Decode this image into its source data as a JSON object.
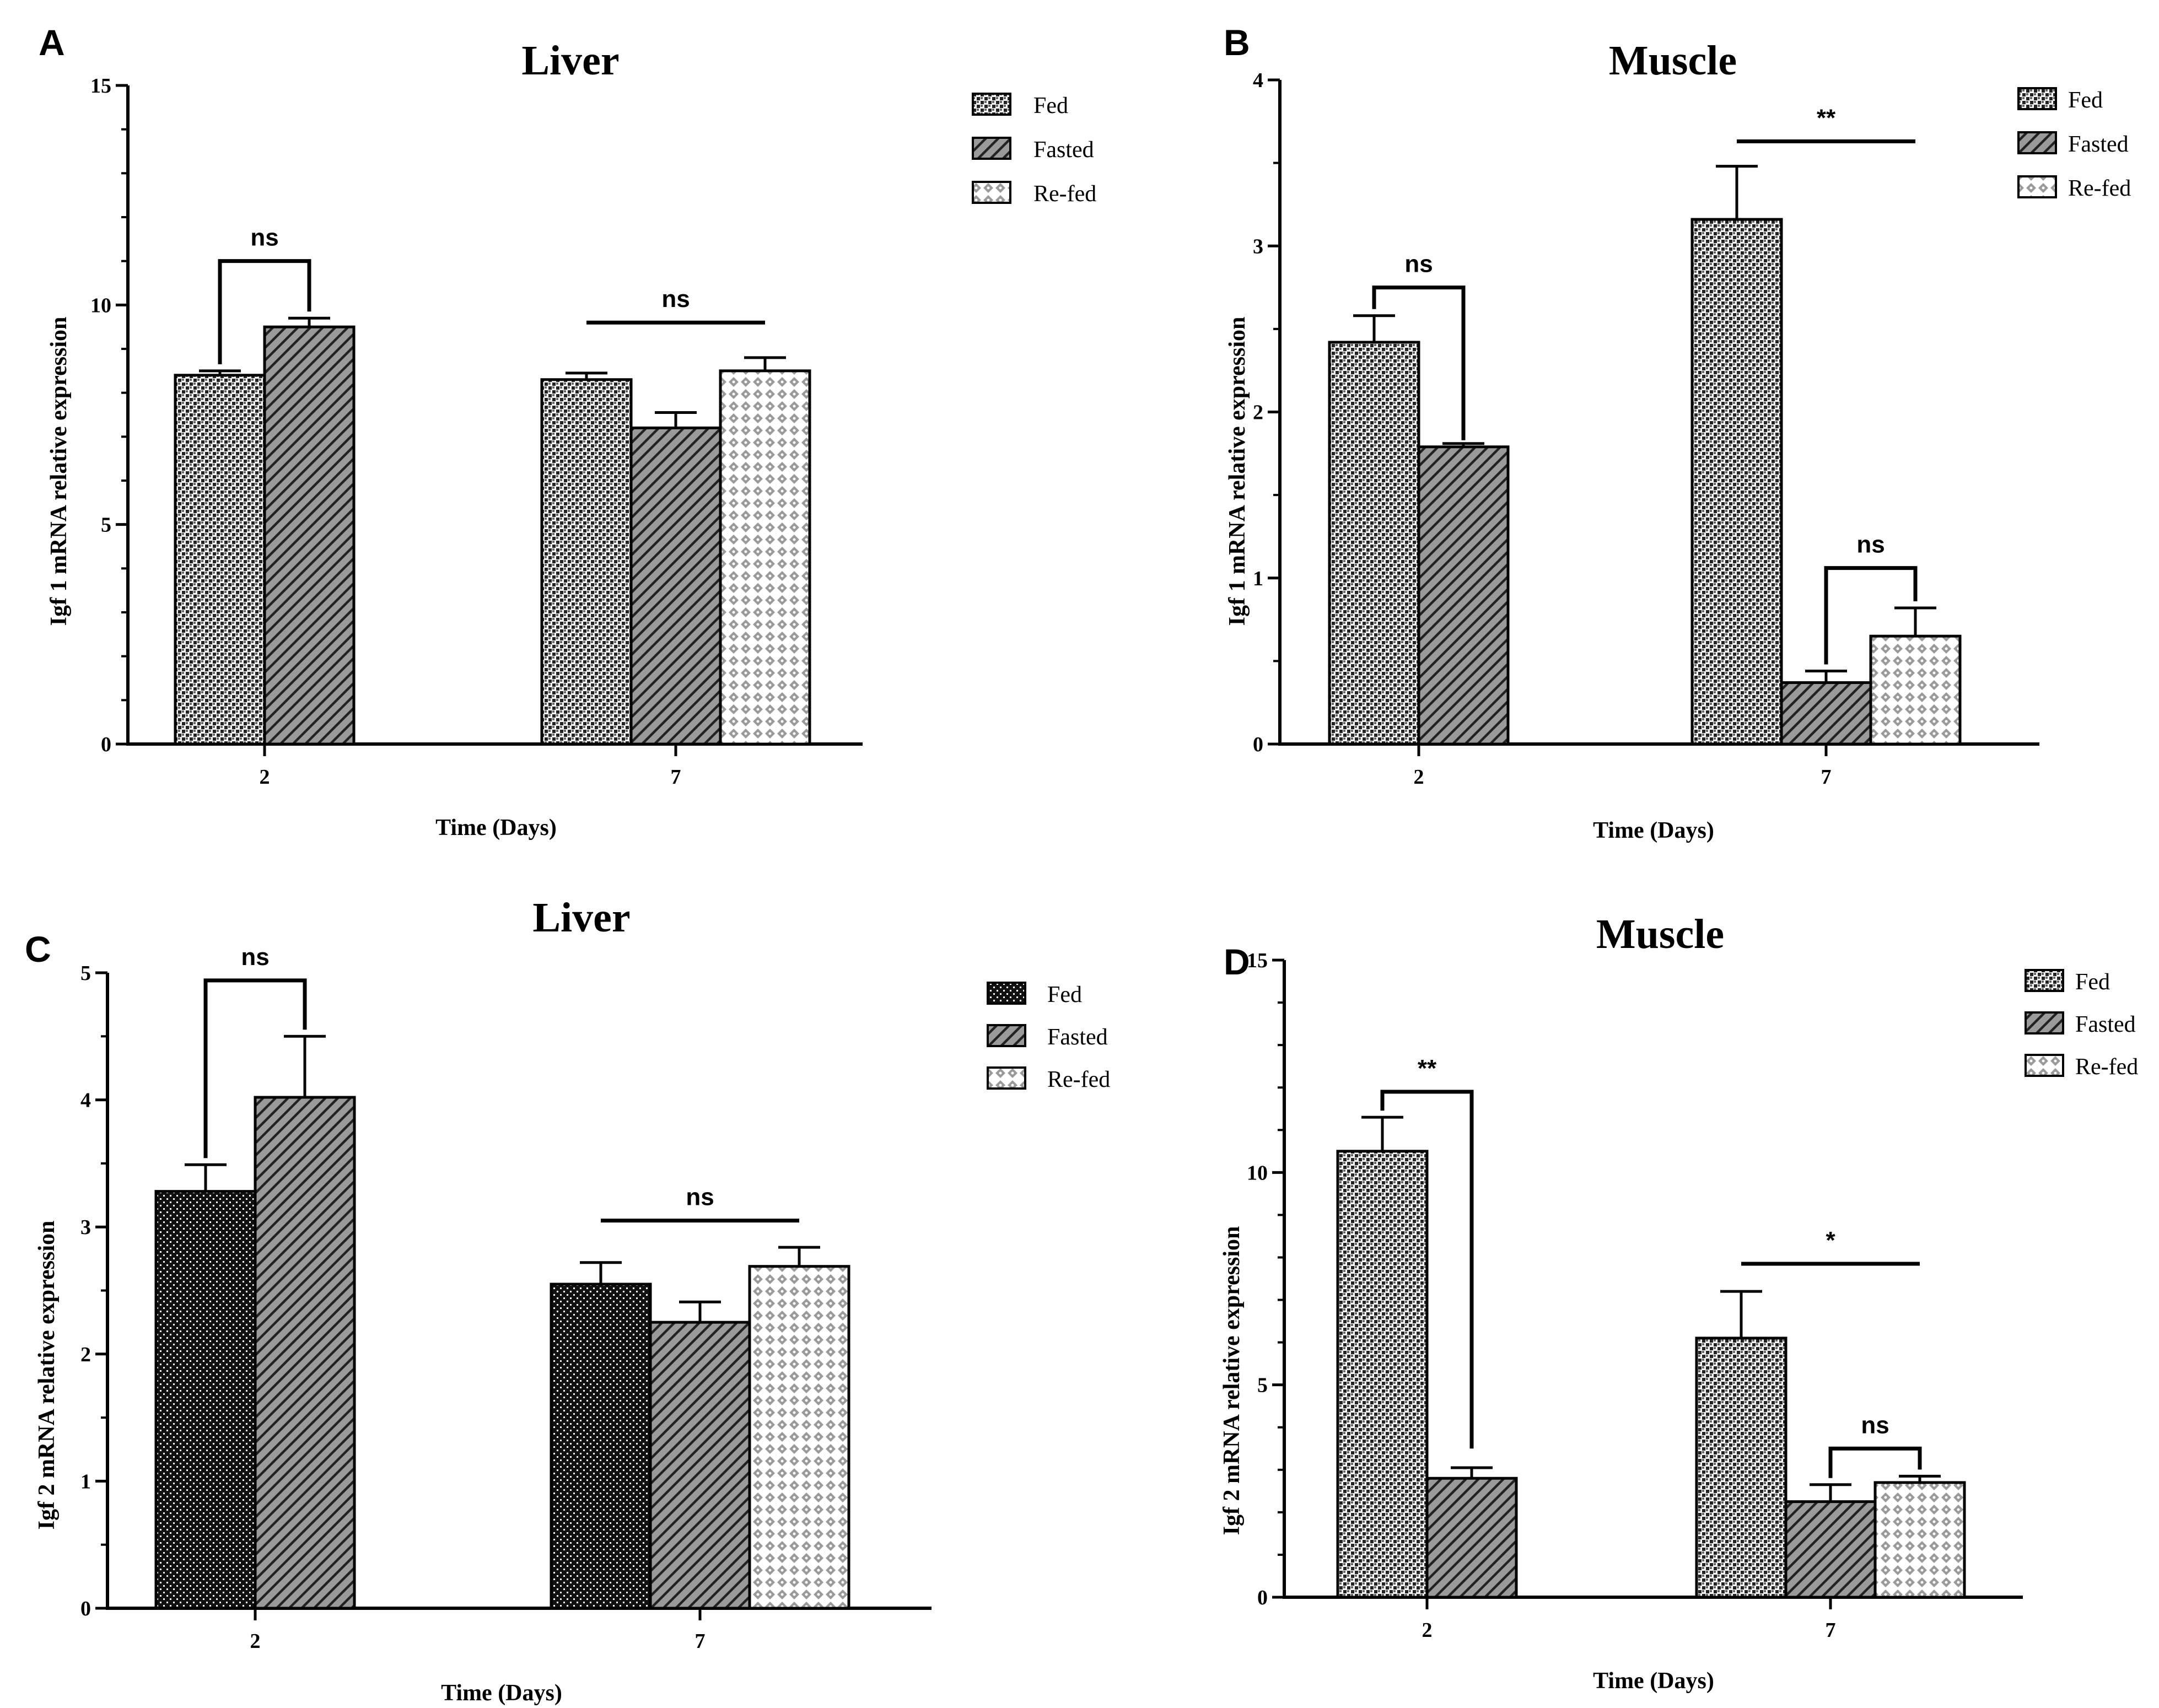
{
  "chart_data": [
    {
      "panel": "A",
      "type": "bar",
      "title": "Liver",
      "xlabel": "Time  (Days)",
      "ylabel": "Igf 1 mRNA relative expression",
      "ylim": [
        0,
        15
      ],
      "yticks": [
        "0",
        "5",
        "10",
        "15"
      ],
      "categories": [
        "2",
        "7"
      ],
      "series": [
        {
          "name": "Fed",
          "pattern": "dots",
          "values": [
            8.4,
            8.3
          ],
          "errors": [
            0.1,
            0.15
          ]
        },
        {
          "name": "Fasted",
          "pattern": "hatch",
          "values": [
            9.5,
            7.2
          ],
          "errors": [
            0.2,
            0.35
          ]
        },
        {
          "name": "Re-fed",
          "pattern": "diamond",
          "values": [
            null,
            8.5
          ],
          "errors": [
            null,
            0.3
          ]
        }
      ],
      "annotations": [
        {
          "label": "ns",
          "kind": "bracket",
          "category": 0,
          "from": 0,
          "to": 1,
          "y": 11.0
        },
        {
          "label": "ns",
          "kind": "line",
          "category": 1,
          "from": 0,
          "to": 2,
          "y": 9.6
        }
      ]
    },
    {
      "panel": "B",
      "type": "bar",
      "title": "Muscle",
      "xlabel": "Time  (Days)",
      "ylabel": "Igf 1 mRNA relative expression",
      "ylim": [
        0,
        4
      ],
      "yticks": [
        "0",
        "1",
        "2",
        "3",
        "4"
      ],
      "categories": [
        "2",
        "7"
      ],
      "series": [
        {
          "name": "Fed",
          "pattern": "dots",
          "values": [
            2.42,
            3.16
          ],
          "errors": [
            0.16,
            0.32
          ]
        },
        {
          "name": "Fasted",
          "pattern": "hatch",
          "values": [
            1.79,
            0.37
          ],
          "errors": [
            0.02,
            0.07
          ]
        },
        {
          "name": "Re-fed",
          "pattern": "diamond",
          "values": [
            null,
            0.65
          ],
          "errors": [
            null,
            0.17
          ]
        }
      ],
      "annotations": [
        {
          "label": "ns",
          "kind": "bracket",
          "category": 0,
          "from": 0,
          "to": 1,
          "y": 2.75,
          "rightDrop": 1.83
        },
        {
          "label": "**",
          "kind": "line",
          "category": 1,
          "from": 0,
          "to": 2,
          "y": 3.63
        },
        {
          "label": "ns",
          "kind": "bracket",
          "category": 1,
          "from": 1,
          "to": 2,
          "y": 1.06
        }
      ]
    },
    {
      "panel": "C",
      "type": "bar",
      "title": "Liver",
      "xlabel": "Time  (Days)",
      "ylabel": "Igf 2 mRNA relative expression",
      "ylim": [
        0,
        5
      ],
      "yticks": [
        "0",
        "1",
        "2",
        "3",
        "4",
        "5"
      ],
      "categories": [
        "2",
        "7"
      ],
      "series": [
        {
          "name": "Fed",
          "pattern": "dark",
          "values": [
            3.28,
            2.55
          ],
          "errors": [
            0.21,
            0.17
          ]
        },
        {
          "name": "Fasted",
          "pattern": "hatch",
          "values": [
            4.02,
            2.25
          ],
          "errors": [
            0.48,
            0.16
          ]
        },
        {
          "name": "Re-fed",
          "pattern": "diamond",
          "values": [
            null,
            2.69
          ],
          "errors": [
            null,
            0.15
          ]
        }
      ],
      "annotations": [
        {
          "label": "ns",
          "kind": "bracket",
          "category": 0,
          "from": 0,
          "to": 1,
          "y": 4.94
        },
        {
          "label": "ns",
          "kind": "line",
          "category": 1,
          "from": 0,
          "to": 2,
          "y": 3.05
        }
      ]
    },
    {
      "panel": "D",
      "type": "bar",
      "title": "Muscle",
      "xlabel": "Time  (Days)",
      "ylabel": "Igf 2 mRNA relative expression",
      "ylim": [
        0,
        15
      ],
      "yticks": [
        "0",
        "5",
        "10",
        "15"
      ],
      "categories": [
        "2",
        "7"
      ],
      "series": [
        {
          "name": "Fed",
          "pattern": "dots",
          "values": [
            10.5,
            6.1
          ],
          "errors": [
            0.8,
            1.1
          ]
        },
        {
          "name": "Fasted",
          "pattern": "hatch",
          "values": [
            2.8,
            2.25
          ],
          "errors": [
            0.25,
            0.4
          ]
        },
        {
          "name": "Re-fed",
          "pattern": "diamond",
          "values": [
            null,
            2.7
          ],
          "errors": [
            null,
            0.15
          ]
        }
      ],
      "annotations": [
        {
          "label": "**",
          "kind": "bracket",
          "category": 0,
          "from": 0,
          "to": 1,
          "y": 11.9,
          "rightDrop": 3.5
        },
        {
          "label": "*",
          "kind": "line",
          "category": 1,
          "from": 0,
          "to": 2,
          "y": 7.85
        },
        {
          "label": "ns",
          "kind": "bracket",
          "category": 1,
          "from": 1,
          "to": 2,
          "y": 3.5
        }
      ]
    }
  ]
}
